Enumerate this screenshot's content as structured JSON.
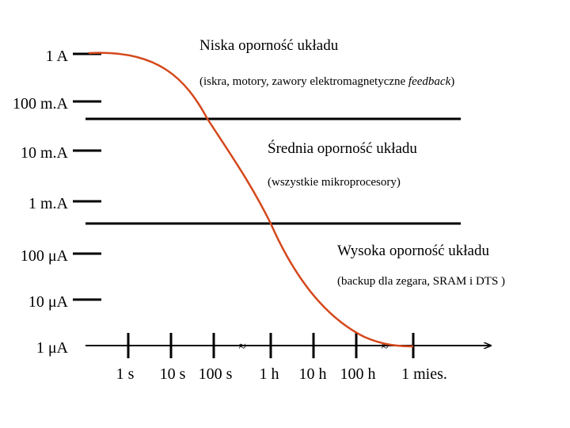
{
  "y_axis": {
    "ticks": [
      "1 A",
      "100 m.A",
      "10 m.A",
      "1 m.A",
      "100 μA",
      "10 μA",
      "1 μA"
    ]
  },
  "x_axis": {
    "ticks": [
      "1 s",
      "10 s",
      "100 s",
      "1 h",
      "10 h",
      "100 h",
      "1 mies."
    ],
    "break_marks": [
      "≈",
      "≈"
    ]
  },
  "regions": [
    {
      "title": "Niska oporność układu",
      "subtitle_prefix": "(iskra, motory, zawory elektromagnetyczne ",
      "subtitle_italic": "feedback",
      "subtitle_suffix": ")"
    },
    {
      "title": "Średnia oporność układu",
      "subtitle": "(wszystkie mikroprocesory)"
    },
    {
      "title": "Wysoka oporność układu",
      "subtitle": "(backup dla zegara, SRAM i DTS )"
    }
  ],
  "colors": {
    "curve": "#d4481c",
    "axes": "#000000"
  }
}
